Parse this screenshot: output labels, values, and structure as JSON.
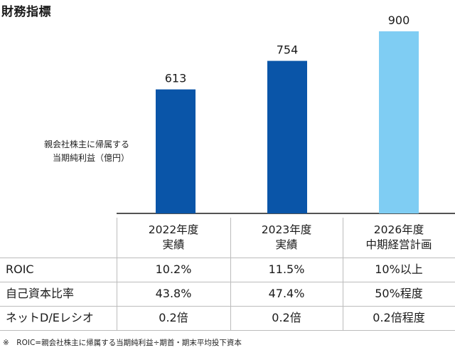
{
  "page_title": "財務指標",
  "chart_data": {
    "type": "bar",
    "categories": [
      "2022年度 実績",
      "2023年度 実績",
      "2026年度 中期経営計画"
    ],
    "values": [
      613,
      754,
      900
    ],
    "value_labels": [
      "613",
      "754",
      "900"
    ],
    "ylabel": "親会社株主に帰属する当期純利益（億円）",
    "ylim": [
      0,
      1000
    ],
    "grid": false,
    "colors": [
      "#0a55a8",
      "#0a55a8",
      "#7fcdf3"
    ]
  },
  "chart_ylabel_lines": [
    "親会社株主に帰属する",
    "当期純利益（億円）"
  ],
  "table": {
    "columns": [
      {
        "line1": "2022年度",
        "line2": "実績"
      },
      {
        "line1": "2023年度",
        "line2": "実績"
      },
      {
        "line1": "2026年度",
        "line2": "中期経営計画"
      }
    ],
    "rows": [
      {
        "label": "ROIC",
        "values": [
          "10.2%",
          "11.5%",
          "10%以上"
        ]
      },
      {
        "label": "自己資本比率",
        "values": [
          "43.8%",
          "47.4%",
          "50%程度"
        ]
      },
      {
        "label": "ネットD/Eレシオ",
        "values": [
          "0.2倍",
          "0.2倍",
          "0.2倍程度"
        ]
      }
    ]
  },
  "footnote": "※　ROIC=親会社株主に帰属する当期純利益÷期首・期末平均投下資本"
}
